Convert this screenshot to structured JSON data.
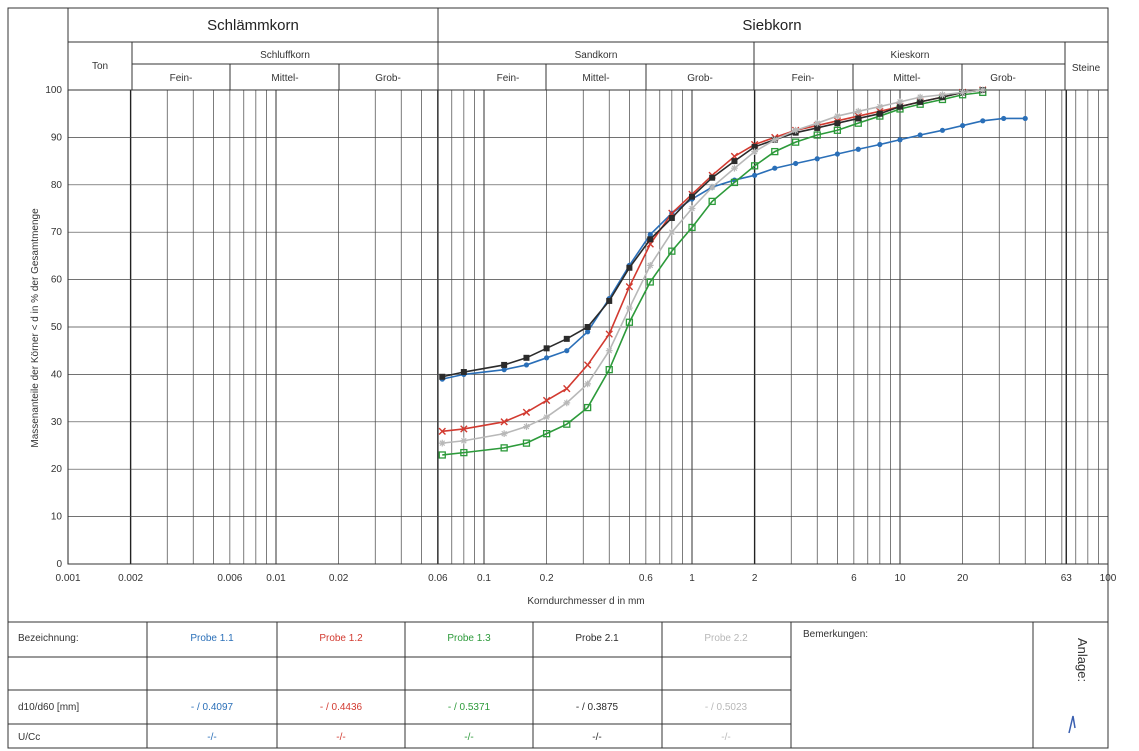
{
  "header": {
    "schlaemmkorn": "Schlämmkorn",
    "siebkorn": "Siebkorn",
    "ton": "Ton",
    "schluffkorn": "Schluffkorn",
    "sandkorn": "Sandkorn",
    "kieskorn": "Kieskorn",
    "steine": "Steine",
    "fein": "Fein-",
    "mittel": "Mittel-",
    "grob": "Grob-"
  },
  "chart_data": {
    "type": "line",
    "x_scale": "log",
    "xlim": [
      0.001,
      100
    ],
    "ylim": [
      0,
      100
    ],
    "grid": true,
    "xlabel": "Korndurchmesser d in mm",
    "ylabel": "Massenanteile der Körner < d in % der Gesamtmenge",
    "x_tick_labels": [
      {
        "x": 0.001,
        "label": "0.001"
      },
      {
        "x": 0.002,
        "label": "0.002"
      },
      {
        "x": 0.006,
        "label": "0.006"
      },
      {
        "x": 0.01,
        "label": "0.01"
      },
      {
        "x": 0.02,
        "label": "0.02"
      },
      {
        "x": 0.06,
        "label": "0.06"
      },
      {
        "x": 0.1,
        "label": "0.1"
      },
      {
        "x": 0.2,
        "label": "0.2"
      },
      {
        "x": 0.6,
        "label": "0.6"
      },
      {
        "x": 1,
        "label": "1"
      },
      {
        "x": 2,
        "label": "2"
      },
      {
        "x": 6,
        "label": "6"
      },
      {
        "x": 10,
        "label": "10"
      },
      {
        "x": 20,
        "label": "20"
      },
      {
        "x": 63,
        "label": "63"
      },
      {
        "x": 100,
        "label": "100"
      }
    ],
    "y_ticks": [
      0,
      10,
      20,
      30,
      40,
      50,
      60,
      70,
      80,
      90,
      100
    ],
    "series": [
      {
        "name": "Probe 1.1",
        "color": "#2a6fb8",
        "marker": "dot",
        "x": [
          0.063,
          0.08,
          0.125,
          0.16,
          0.2,
          0.25,
          0.315,
          0.4,
          0.5,
          0.63,
          0.8,
          1,
          1.25,
          1.6,
          2,
          2.5,
          3.15,
          4,
          5,
          6.3,
          8,
          10,
          12.5,
          16,
          20,
          25,
          31.5,
          40
        ],
        "y": [
          39,
          40,
          41,
          42,
          43.5,
          45,
          49,
          56,
          63,
          69.5,
          74,
          77,
          79.5,
          81,
          82,
          83.5,
          84.5,
          85.5,
          86.5,
          87.5,
          88.5,
          89.5,
          90.5,
          91.5,
          92.5,
          93.5,
          94,
          94
        ]
      },
      {
        "name": "Probe 1.2",
        "color": "#d23a30",
        "marker": "x",
        "x": [
          0.063,
          0.08,
          0.125,
          0.16,
          0.2,
          0.25,
          0.315,
          0.4,
          0.5,
          0.63,
          0.8,
          1,
          1.25,
          1.6,
          2,
          2.5,
          3.15,
          4,
          5,
          6.3,
          8,
          10,
          12.5,
          16,
          20,
          25
        ],
        "y": [
          28,
          28.5,
          30,
          32,
          34.5,
          37,
          42,
          48.5,
          58.5,
          67.5,
          74,
          78,
          82,
          86,
          88.5,
          90,
          91.5,
          92.5,
          93.5,
          94.5,
          95.5,
          96.5,
          97.5,
          98.5,
          99.5,
          100
        ]
      },
      {
        "name": "Probe 1.3",
        "color": "#2c9a3a",
        "marker": "square",
        "x": [
          0.063,
          0.08,
          0.125,
          0.16,
          0.2,
          0.25,
          0.315,
          0.4,
          0.5,
          0.63,
          0.8,
          1,
          1.25,
          1.6,
          2,
          2.5,
          3.15,
          4,
          5,
          6.3,
          8,
          10,
          12.5,
          16,
          20,
          25
        ],
        "y": [
          23,
          23.5,
          24.5,
          25.5,
          27.5,
          29.5,
          33,
          41,
          51,
          59.5,
          66,
          71,
          76.5,
          80.5,
          84,
          87,
          89,
          90.5,
          91.5,
          93,
          94.5,
          96,
          97,
          98,
          99,
          99.5
        ]
      },
      {
        "name": "Probe 2.1",
        "color": "#2b2b2b",
        "marker": "square-filled",
        "x": [
          0.063,
          0.08,
          0.125,
          0.16,
          0.2,
          0.25,
          0.315,
          0.4,
          0.5,
          0.63,
          0.8,
          1,
          1.25,
          1.6,
          2,
          2.5,
          3.15,
          4,
          5,
          6.3,
          8,
          10,
          12.5,
          16,
          20,
          25
        ],
        "y": [
          39.5,
          40.5,
          42,
          43.5,
          45.5,
          47.5,
          50,
          55.5,
          62.5,
          68.5,
          73,
          77.5,
          81.5,
          85,
          88,
          89.5,
          91,
          92,
          93,
          94,
          95,
          96.5,
          97.5,
          98.5,
          99.5,
          100
        ]
      },
      {
        "name": "Probe 2.2",
        "color": "#b8b8b8",
        "marker": "star",
        "x": [
          0.063,
          0.08,
          0.125,
          0.16,
          0.2,
          0.25,
          0.315,
          0.4,
          0.5,
          0.63,
          0.8,
          1,
          1.25,
          1.6,
          2,
          2.5,
          3.15,
          4,
          5,
          6.3,
          8,
          10,
          12.5,
          16,
          20,
          25
        ],
        "y": [
          25.5,
          26,
          27.5,
          29,
          31,
          34,
          38,
          45,
          54,
          63,
          70,
          75,
          79.5,
          83.5,
          87,
          89.5,
          91.5,
          93,
          94.5,
          95.5,
          96.5,
          97.5,
          98.5,
          99,
          99.5,
          100
        ]
      }
    ]
  },
  "table": {
    "row_labels": [
      "Bezeichnung:",
      "",
      "d10/d60 [mm]",
      "U/Cc"
    ],
    "columns": [
      {
        "name": "Probe 1.1",
        "d10_d60": "- / 0.4097",
        "u_cc": "-/-",
        "color": "#2a6fb8"
      },
      {
        "name": "Probe 1.2",
        "d10_d60": "- / 0.4436",
        "u_cc": "-/-",
        "color": "#d23a30"
      },
      {
        "name": "Probe 1.3",
        "d10_d60": "- / 0.5371",
        "u_cc": "-/-",
        "color": "#2c9a3a"
      },
      {
        "name": "Probe 2.1",
        "d10_d60": "- / 0.3875",
        "u_cc": "-/-",
        "color": "#2b2b2b"
      },
      {
        "name": "Probe 2.2",
        "d10_d60": "- / 0.5023",
        "u_cc": "-/-",
        "color": "#b8b8b8"
      }
    ],
    "bemerkungen": "Bemerkungen:",
    "anlage": "Anlage:"
  }
}
